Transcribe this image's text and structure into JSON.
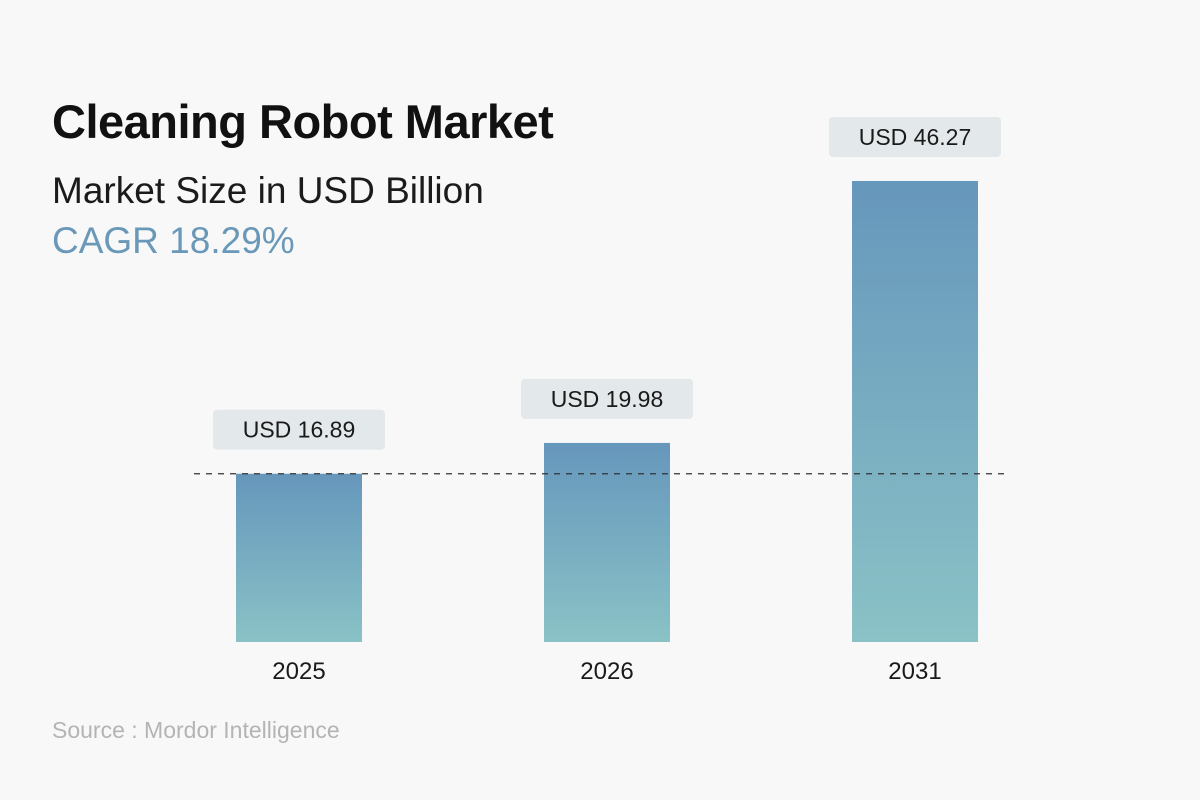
{
  "header": {
    "title": "Cleaning Robot Market",
    "subtitle": "Market Size in USD Billion",
    "cagr": "CAGR 18.29%"
  },
  "footer": {
    "source": "Source : Mordor Intelligence"
  },
  "colors": {
    "accent": "#6a98b8",
    "bar_top": "#6697bc",
    "bar_bottom": "#8ac2c6",
    "label_box": "#e3e8ea"
  },
  "chart_data": {
    "type": "bar",
    "categories": [
      "2025",
      "2026",
      "2031"
    ],
    "values": [
      16.89,
      19.98,
      46.27
    ],
    "value_labels": [
      "USD 16.89",
      "USD 19.98",
      "USD 46.27"
    ],
    "title": "Cleaning Robot Market",
    "subtitle": "Market Size in USD Billion",
    "xlabel": "",
    "ylabel": "",
    "ylim": [
      0,
      46.27
    ],
    "reference_line": 16.89,
    "grid": false,
    "legend": "none"
  }
}
